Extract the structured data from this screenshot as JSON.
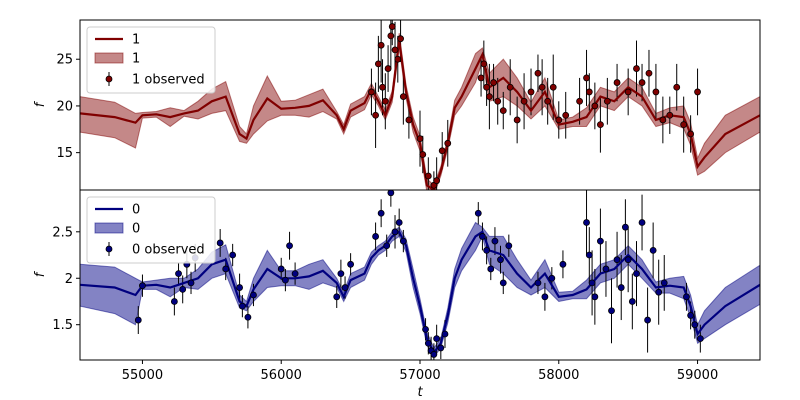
{
  "chart_data": [
    {
      "type": "line",
      "panel": "top",
      "ylabel": "f",
      "xlim": [
        54550,
        59450
      ],
      "ylim": [
        11,
        29.2
      ],
      "yticks": [
        15,
        20,
        25
      ],
      "line_color": "#800000",
      "band_color": "#b06060",
      "legend": {
        "placement": "top-left",
        "entries": [
          "1",
          "1",
          "1 observed"
        ]
      },
      "model": {
        "x": [
          54550,
          54800,
          54950,
          55000,
          55100,
          55200,
          55300,
          55400,
          55500,
          55600,
          55700,
          55750,
          55800,
          55900,
          56000,
          56100,
          56200,
          56300,
          56400,
          56450,
          56500,
          56600,
          56650,
          56700,
          56750,
          56800,
          56850,
          56900,
          56950,
          57000,
          57050,
          57100,
          57150,
          57200,
          57250,
          57300,
          57400,
          57450,
          57500,
          57600,
          57700,
          57800,
          57900,
          58000,
          58100,
          58200,
          58300,
          58400,
          58500,
          58600,
          58700,
          58800,
          58900,
          58950,
          59000,
          59050,
          59200,
          59450
        ],
        "y": [
          19.2,
          18.8,
          18.2,
          19.0,
          19.1,
          18.8,
          19.2,
          19.5,
          20.5,
          21.0,
          17.0,
          16.5,
          18.5,
          20.8,
          19.7,
          19.8,
          20.0,
          20.6,
          19.0,
          17.5,
          19.5,
          20.3,
          21.8,
          20.5,
          19.0,
          21.0,
          27.0,
          21.5,
          18.0,
          16.0,
          11.5,
          11.0,
          13.0,
          16.0,
          19.8,
          21.0,
          24.0,
          25.5,
          22.0,
          23.0,
          21.5,
          19.5,
          21.5,
          18.0,
          18.3,
          18.8,
          21.0,
          20.5,
          22.0,
          21.0,
          18.5,
          19.0,
          18.8,
          17.0,
          13.5,
          14.5,
          17.0,
          19.0
        ],
        "y_lower": [
          17.2,
          16.6,
          15.5,
          18.7,
          18.8,
          17.8,
          18.9,
          18.6,
          19.2,
          19.5,
          16.2,
          16.0,
          17.0,
          18.4,
          19.0,
          19.0,
          18.8,
          19.4,
          18.6,
          17.0,
          18.8,
          19.6,
          21.2,
          20.0,
          18.5,
          20.4,
          26.2,
          20.8,
          17.2,
          15.2,
          10.8,
          10.5,
          12.5,
          15.4,
          19.0,
          20.0,
          22.5,
          24.8,
          20.5,
          21.0,
          20.0,
          18.6,
          20.0,
          17.5,
          17.8,
          17.8,
          20.0,
          19.5,
          21.0,
          20.0,
          17.8,
          18.2,
          17.6,
          15.8,
          12.6,
          13.0,
          15.0,
          17.2
        ],
        "y_upper": [
          21.0,
          20.4,
          19.2,
          19.3,
          19.4,
          19.8,
          19.5,
          20.5,
          21.8,
          22.6,
          17.8,
          17.0,
          20.0,
          23.2,
          20.5,
          20.6,
          21.2,
          21.8,
          19.4,
          18.0,
          20.2,
          21.0,
          22.4,
          21.0,
          19.6,
          21.6,
          27.8,
          22.2,
          18.8,
          16.8,
          12.2,
          11.5,
          13.5,
          16.6,
          20.6,
          22.0,
          25.6,
          26.2,
          23.5,
          25.0,
          23.0,
          20.4,
          23.0,
          18.5,
          18.8,
          19.8,
          22.0,
          21.5,
          23.0,
          22.0,
          19.2,
          19.8,
          20.0,
          18.2,
          14.4,
          16.0,
          19.0,
          21.0
        ]
      },
      "observed": {
        "x": [
          56650,
          56680,
          56700,
          56720,
          56730,
          56750,
          56770,
          56790,
          56800,
          56820,
          56840,
          56860,
          56880,
          56920,
          57000,
          57020,
          57060,
          57100,
          57120,
          57160,
          57200,
          57440,
          57460,
          57480,
          57500,
          57530,
          57560,
          57600,
          57650,
          57700,
          57750,
          57800,
          57850,
          57880,
          57920,
          57960,
          58000,
          58050,
          58150,
          58200,
          58220,
          58260,
          58300,
          58350,
          58420,
          58500,
          58560,
          58600,
          58650,
          58700,
          58750,
          58800,
          58850,
          58900,
          58950,
          59000
        ],
        "y": [
          21.5,
          19.0,
          24.5,
          26.5,
          22.0,
          20.5,
          24.0,
          27.5,
          28.5,
          26.0,
          25.0,
          27.2,
          21.0,
          18.5,
          16.5,
          14.8,
          12.5,
          11.5,
          12.0,
          15.2,
          16.0,
          23.0,
          24.5,
          22.0,
          21.0,
          22.5,
          20.5,
          19.5,
          22.0,
          18.5,
          20.5,
          21.5,
          23.5,
          22.0,
          20.5,
          22.0,
          18.5,
          19.0,
          20.5,
          23.0,
          21.5,
          20.0,
          18.0,
          20.5,
          22.5,
          21.5,
          24.0,
          22.5,
          23.5,
          21.5,
          18.5,
          19.0,
          22.0,
          18.0,
          17.0,
          21.5
        ],
        "err": [
          2.5,
          3.5,
          3.0,
          4.0,
          3.0,
          3.0,
          2.5,
          3.5,
          2.0,
          3.0,
          2.5,
          2.5,
          3.0,
          2.0,
          3.0,
          2.0,
          2.0,
          1.5,
          2.5,
          2.0,
          2.5,
          2.0,
          2.5,
          2.0,
          3.5,
          2.0,
          2.5,
          2.0,
          3.0,
          2.5,
          3.0,
          2.5,
          2.0,
          3.0,
          2.5,
          3.5,
          2.0,
          2.5,
          2.5,
          3.0,
          2.0,
          2.5,
          3.0,
          2.5,
          2.0,
          2.5,
          3.0,
          2.0,
          2.5,
          3.0,
          2.5,
          2.0,
          2.5,
          3.0,
          2.0,
          2.5
        ]
      }
    },
    {
      "type": "line",
      "panel": "bottom",
      "xlabel": "t",
      "ylabel": "f",
      "xlim": [
        54550,
        59450
      ],
      "ylim": [
        1.12,
        2.95
      ],
      "yticks": [
        1.5,
        2.0,
        2.5
      ],
      "xticks": [
        55000,
        56000,
        57000,
        58000,
        59000
      ],
      "line_color": "#00007f",
      "band_color": "#5a5ab0",
      "legend": {
        "placement": "top-left",
        "entries": [
          "0",
          "0",
          "0 observed"
        ]
      },
      "model": {
        "x": [
          54550,
          54800,
          54950,
          55000,
          55100,
          55200,
          55300,
          55400,
          55500,
          55600,
          55700,
          55750,
          55800,
          55900,
          56000,
          56100,
          56200,
          56300,
          56400,
          56450,
          56500,
          56600,
          56650,
          56700,
          56750,
          56800,
          56850,
          56900,
          56950,
          57000,
          57050,
          57100,
          57150,
          57200,
          57250,
          57300,
          57400,
          57450,
          57500,
          57600,
          57700,
          57800,
          57900,
          58000,
          58100,
          58200,
          58300,
          58400,
          58500,
          58600,
          58700,
          58800,
          58900,
          58950,
          59000,
          59050,
          59200,
          59450
        ],
        "y": [
          1.93,
          1.9,
          1.82,
          1.92,
          1.93,
          1.9,
          1.95,
          2.0,
          2.15,
          2.2,
          1.75,
          1.7,
          1.88,
          2.1,
          2.0,
          2.0,
          2.02,
          2.08,
          1.95,
          1.8,
          1.98,
          2.05,
          2.22,
          2.3,
          2.35,
          2.45,
          2.5,
          2.35,
          2.0,
          1.7,
          1.35,
          1.2,
          1.3,
          1.6,
          2.0,
          2.2,
          2.45,
          2.5,
          2.3,
          2.25,
          2.05,
          1.9,
          2.05,
          1.8,
          1.82,
          1.88,
          2.05,
          2.1,
          2.25,
          2.1,
          1.9,
          1.92,
          1.9,
          1.7,
          1.4,
          1.5,
          1.7,
          1.93
        ],
        "y_lower": [
          1.7,
          1.62,
          1.5,
          1.88,
          1.88,
          1.8,
          1.9,
          1.88,
          2.0,
          2.05,
          1.68,
          1.65,
          1.75,
          1.9,
          1.92,
          1.92,
          1.88,
          1.95,
          1.9,
          1.75,
          1.9,
          1.98,
          2.15,
          2.25,
          2.3,
          2.4,
          2.45,
          2.28,
          1.9,
          1.62,
          1.28,
          1.15,
          1.25,
          1.52,
          1.9,
          2.08,
          2.3,
          2.45,
          2.15,
          2.05,
          1.9,
          1.82,
          1.9,
          1.75,
          1.78,
          1.78,
          1.95,
          2.0,
          2.15,
          2.0,
          1.84,
          1.84,
          1.78,
          1.58,
          1.3,
          1.35,
          1.5,
          1.72
        ],
        "y_upper": [
          2.15,
          2.12,
          2.0,
          1.96,
          1.98,
          2.0,
          2.0,
          2.1,
          2.28,
          2.36,
          1.82,
          1.75,
          2.0,
          2.3,
          2.08,
          2.08,
          2.15,
          2.2,
          2.0,
          1.85,
          2.05,
          2.12,
          2.28,
          2.35,
          2.4,
          2.5,
          2.55,
          2.42,
          2.1,
          1.78,
          1.42,
          1.25,
          1.35,
          1.68,
          2.1,
          2.32,
          2.6,
          2.55,
          2.45,
          2.45,
          2.2,
          1.98,
          2.2,
          1.85,
          1.86,
          1.98,
          2.15,
          2.2,
          2.35,
          2.2,
          1.96,
          2.0,
          2.02,
          1.82,
          1.5,
          1.65,
          1.9,
          2.14
        ]
      },
      "observed": {
        "x": [
          54970,
          55000,
          55230,
          55260,
          55290,
          55320,
          55350,
          55380,
          55560,
          55600,
          55650,
          55700,
          55720,
          55760,
          55800,
          56000,
          56030,
          56060,
          56100,
          56400,
          56430,
          56460,
          56500,
          56680,
          56720,
          56760,
          56790,
          56820,
          56850,
          56880,
          57040,
          57060,
          57080,
          57100,
          57120,
          57150,
          57180,
          57420,
          57450,
          57480,
          57510,
          57540,
          57580,
          57600,
          57640,
          57850,
          57900,
          57950,
          58030,
          58200,
          58220,
          58240,
          58260,
          58300,
          58340,
          58380,
          58420,
          58450,
          58480,
          58500,
          58530,
          58560,
          58600,
          58640,
          58680,
          58720,
          58760,
          58920,
          58950,
          58980,
          59020
        ],
        "y": [
          1.55,
          1.92,
          1.75,
          2.05,
          1.88,
          2.15,
          1.95,
          2.22,
          2.38,
          2.1,
          2.25,
          1.9,
          1.7,
          1.58,
          1.82,
          2.1,
          1.98,
          2.35,
          2.05,
          1.8,
          2.05,
          1.9,
          2.15,
          2.45,
          2.7,
          2.35,
          2.92,
          2.5,
          2.6,
          2.4,
          1.45,
          1.3,
          1.22,
          1.18,
          1.35,
          1.25,
          1.4,
          2.7,
          2.45,
          2.3,
          2.1,
          2.4,
          2.2,
          1.95,
          2.35,
          1.95,
          1.8,
          2.0,
          2.15,
          2.6,
          2.25,
          1.95,
          1.8,
          2.4,
          2.1,
          1.65,
          2.2,
          1.9,
          2.55,
          2.2,
          1.75,
          2.05,
          2.6,
          1.55,
          2.3,
          1.85,
          1.95,
          1.8,
          1.6,
          1.5,
          1.35
        ],
        "err": [
          0.15,
          0.12,
          0.15,
          0.12,
          0.15,
          0.15,
          0.12,
          0.15,
          0.15,
          0.12,
          0.12,
          0.15,
          0.12,
          0.12,
          0.12,
          0.12,
          0.12,
          0.15,
          0.12,
          0.12,
          0.15,
          0.12,
          0.12,
          0.15,
          0.15,
          0.12,
          0.15,
          0.18,
          0.15,
          0.12,
          0.12,
          0.12,
          0.15,
          0.12,
          0.15,
          0.12,
          0.15,
          0.12,
          0.15,
          0.15,
          0.12,
          0.15,
          0.15,
          0.12,
          0.12,
          0.12,
          0.15,
          0.12,
          0.15,
          0.35,
          0.3,
          0.35,
          0.3,
          0.35,
          0.3,
          0.35,
          0.3,
          0.35,
          0.3,
          0.35,
          0.3,
          0.35,
          0.3,
          0.35,
          0.3,
          0.35,
          0.3,
          0.15,
          0.15,
          0.15,
          0.15
        ]
      }
    }
  ]
}
